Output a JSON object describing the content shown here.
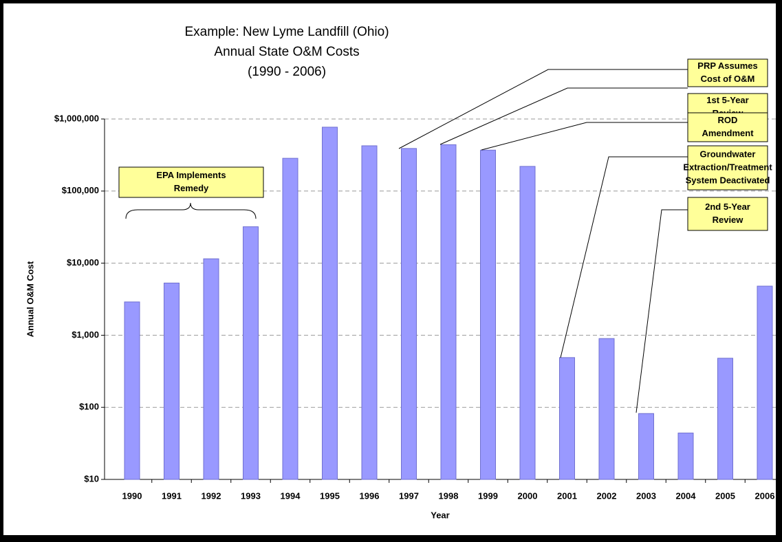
{
  "chart_data": {
    "type": "bar",
    "title": [
      "Example: New Lyme Landfill (Ohio)",
      "Annual State O&M Costs",
      "(1990 - 2006)"
    ],
    "x_label": "Year",
    "y_label": "Annual O&M Cost",
    "categories": [
      "1990",
      "1991",
      "1992",
      "1993",
      "1994",
      "1995",
      "1996",
      "1997",
      "1998",
      "1999",
      "2000",
      "2001",
      "2002",
      "2003",
      "2004",
      "2005",
      "2006"
    ],
    "values": [
      2900,
      5300,
      11500,
      32000,
      285000,
      770000,
      425000,
      390000,
      440000,
      370000,
      220000,
      490,
      900,
      82,
      44,
      480,
      4800
    ],
    "color": "#9999ff",
    "log_scale": true,
    "grid": true,
    "ylim": [
      10,
      1000000
    ],
    "yticks": [
      {
        "value": 10,
        "label": "$10"
      },
      {
        "value": 100,
        "label": "$100"
      },
      {
        "value": 1000,
        "label": "$1,000"
      },
      {
        "value": 10000,
        "label": "$10,000"
      },
      {
        "value": 100000,
        "label": "$100,000"
      },
      {
        "value": 1000000,
        "label": "$1,000,000"
      }
    ],
    "annotations": [
      {
        "lines": [
          "EPA Implements",
          "Remedy"
        ]
      },
      {
        "lines": [
          "PRP Assumes",
          "Cost of O&M"
        ]
      },
      {
        "lines": [
          "1st 5-Year",
          "Review"
        ]
      },
      {
        "lines": [
          "ROD",
          "Amendment"
        ]
      },
      {
        "lines": [
          "Groundwater",
          "Extraction/Treatment",
          "System Deactivated"
        ]
      },
      {
        "lines": [
          "2nd 5-Year",
          "Review"
        ]
      }
    ]
  }
}
